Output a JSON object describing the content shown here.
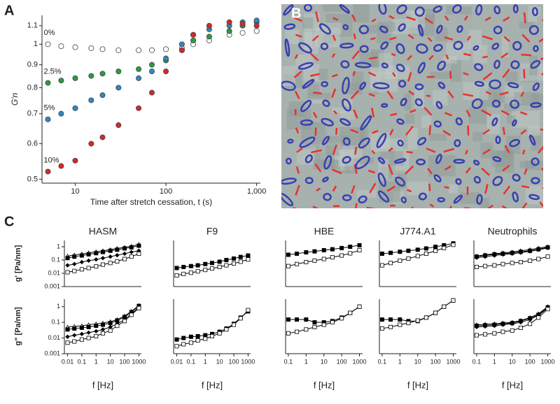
{
  "panel_labels": {
    "a": "A",
    "b": "B",
    "c": "C"
  },
  "chart_data": [
    {
      "type": "scatter",
      "xscale": "log",
      "yscale": "log",
      "xlabel": "Time after stretch cessation, t (s)",
      "ylabel": "G′n",
      "x": [
        5,
        7,
        10,
        15,
        20,
        30,
        50,
        70,
        100,
        150,
        200,
        300,
        500,
        700,
        1000
      ],
      "xlim": [
        4.3,
        1100
      ],
      "ylim": [
        0.49,
        1.16
      ],
      "xticks": [
        10,
        100,
        {
          "value": 1000,
          "label": "1,000"
        }
      ],
      "yticks": [
        0.5,
        0.6,
        0.7,
        0.8,
        0.9,
        1,
        1.1
      ],
      "series": [
        {
          "name": "0%",
          "color": "#ffffff",
          "values": [
            1.0,
            0.99,
            0.985,
            0.98,
            0.975,
            0.97,
            0.97,
            0.97,
            0.975,
            0.98,
            1.0,
            1.02,
            1.05,
            1.06,
            1.07
          ]
        },
        {
          "name": "2.5%",
          "color": "#2e9a3e",
          "values": [
            0.82,
            0.83,
            0.84,
            0.85,
            0.86,
            0.87,
            0.88,
            0.9,
            0.92,
            0.97,
            1.02,
            1.04,
            1.07,
            1.1,
            1.12
          ]
        },
        {
          "name": "5%",
          "color": "#2f86c4",
          "values": [
            0.68,
            0.7,
            0.72,
            0.75,
            0.77,
            0.8,
            0.84,
            0.87,
            0.93,
            1.0,
            1.05,
            1.08,
            1.1,
            1.12,
            1.13
          ]
        },
        {
          "name": "10%",
          "color": "#d62828",
          "values": [
            0.52,
            0.535,
            0.55,
            0.6,
            0.62,
            0.66,
            0.72,
            0.78,
            0.87,
            0.97,
            1.05,
            1.1,
            1.12,
            1.11,
            1.1
          ]
        }
      ]
    },
    {
      "type": "line",
      "title": "HASM",
      "ylabel": "g' [Pa/nm]",
      "xscale": "log",
      "yscale": "log",
      "color": "#000000",
      "x": [
        0.01,
        0.03,
        0.1,
        0.3,
        1,
        3,
        10,
        30,
        100,
        300,
        1000
      ],
      "xlim": [
        0.006,
        1500
      ],
      "ylim": [
        0.001,
        3
      ],
      "yticks": [
        0.001,
        0.01,
        0.1,
        1
      ],
      "series": [
        {
          "marker": "triangle",
          "filled": false,
          "values": [
            0.2,
            0.24,
            0.29,
            0.35,
            0.42,
            0.5,
            0.6,
            0.75,
            0.9,
            1.1,
            1.5
          ]
        },
        {
          "marker": "square",
          "filled": true,
          "values": [
            0.14,
            0.18,
            0.22,
            0.27,
            0.33,
            0.4,
            0.5,
            0.6,
            0.75,
            0.9,
            1.2
          ]
        },
        {
          "marker": "diamond",
          "filled": true,
          "values": [
            0.04,
            0.05,
            0.07,
            0.09,
            0.11,
            0.14,
            0.18,
            0.23,
            0.3,
            0.4,
            0.5
          ]
        },
        {
          "marker": "square",
          "filled": false,
          "values": [
            0.012,
            0.015,
            0.02,
            0.025,
            0.033,
            0.045,
            0.06,
            0.08,
            0.12,
            0.18,
            0.3
          ]
        }
      ]
    },
    {
      "type": "line",
      "title": "F9",
      "xscale": "log",
      "yscale": "log",
      "color": "#000000",
      "x": [
        0.01,
        0.03,
        0.1,
        0.3,
        1,
        3,
        10,
        30,
        100,
        300,
        1000
      ],
      "xlim": [
        0.006,
        1500
      ],
      "ylim": [
        0.001,
        3
      ],
      "series": [
        {
          "marker": "square",
          "filled": true,
          "values": [
            0.025,
            0.03,
            0.035,
            0.04,
            0.05,
            0.06,
            0.075,
            0.1,
            0.13,
            0.17,
            0.22
          ]
        },
        {
          "marker": "square",
          "filled": false,
          "values": [
            0.007,
            0.009,
            0.011,
            0.014,
            0.018,
            0.023,
            0.03,
            0.04,
            0.055,
            0.075,
            0.11
          ]
        }
      ]
    },
    {
      "type": "line",
      "title": "HBE",
      "xscale": "log",
      "yscale": "log",
      "color": "#000000",
      "x": [
        0.1,
        0.3,
        1,
        3,
        10,
        30,
        100,
        300,
        1000
      ],
      "xlim": [
        0.07,
        1500
      ],
      "ylim": [
        0.001,
        3
      ],
      "series": [
        {
          "marker": "square",
          "filled": true,
          "values": [
            0.25,
            0.3,
            0.38,
            0.45,
            0.55,
            0.65,
            0.8,
            1.0,
            1.3
          ]
        },
        {
          "marker": "square",
          "filled": false,
          "values": [
            0.035,
            0.05,
            0.07,
            0.09,
            0.12,
            0.16,
            0.22,
            0.32,
            0.55
          ]
        }
      ]
    },
    {
      "type": "line",
      "title": "J774.A1",
      "xscale": "log",
      "yscale": "log",
      "color": "#000000",
      "x": [
        0.1,
        0.3,
        1,
        3,
        10,
        30,
        100,
        300,
        1000
      ],
      "xlim": [
        0.07,
        1500
      ],
      "ylim": [
        0.001,
        3
      ],
      "series": [
        {
          "marker": "square",
          "filled": true,
          "values": [
            0.3,
            0.35,
            0.42,
            0.5,
            0.6,
            0.75,
            1.0,
            1.3,
            1.8
          ]
        },
        {
          "marker": "square",
          "filled": false,
          "values": [
            0.04,
            0.06,
            0.09,
            0.13,
            0.2,
            0.3,
            0.5,
            0.8,
            1.4
          ]
        }
      ]
    },
    {
      "type": "line",
      "title": "Neutrophils",
      "xscale": "log",
      "yscale": "log",
      "color": "#000000",
      "x": [
        0.1,
        0.3,
        1,
        3,
        10,
        30,
        100,
        300,
        1000
      ],
      "xlim": [
        0.07,
        1500
      ],
      "ylim": [
        0.001,
        3
      ],
      "series": [
        {
          "marker": "triangle",
          "filled": false,
          "values": [
            0.2,
            0.25,
            0.3,
            0.35,
            0.4,
            0.5,
            0.6,
            0.8,
            1.0
          ]
        },
        {
          "marker": "square",
          "filled": true,
          "values": [
            0.18,
            0.22,
            0.27,
            0.3,
            0.35,
            0.42,
            0.5,
            0.65,
            0.9
          ]
        },
        {
          "marker": "diamond",
          "filled": true,
          "values": [
            0.15,
            0.18,
            0.22,
            0.26,
            0.3,
            0.36,
            0.45,
            0.6,
            0.8
          ]
        },
        {
          "marker": "square",
          "filled": false,
          "values": [
            0.03,
            0.035,
            0.04,
            0.05,
            0.06,
            0.07,
            0.09,
            0.12,
            0.18
          ]
        }
      ]
    },
    {
      "type": "line",
      "ylabel": "g\" [Pa/nm]",
      "xlabel": "f [Hz]",
      "xscale": "log",
      "yscale": "log",
      "color": "#000000",
      "x": [
        0.01,
        0.03,
        0.1,
        0.3,
        1,
        3,
        10,
        30,
        100,
        300,
        1000
      ],
      "xlim": [
        0.006,
        1500
      ],
      "ylim": [
        0.001,
        3
      ],
      "xticks": [
        0.01,
        0.1,
        1,
        10,
        100,
        1000
      ],
      "yticks": [
        0.001,
        0.01,
        0.1,
        1
      ],
      "series": [
        {
          "marker": "triangle",
          "filled": false,
          "values": [
            0.05,
            0.055,
            0.06,
            0.07,
            0.08,
            0.09,
            0.11,
            0.15,
            0.25,
            0.5,
            1.2
          ]
        },
        {
          "marker": "square",
          "filled": true,
          "values": [
            0.035,
            0.04,
            0.045,
            0.05,
            0.06,
            0.07,
            0.09,
            0.13,
            0.22,
            0.45,
            1.1
          ]
        },
        {
          "marker": "diamond",
          "filled": true,
          "values": [
            0.012,
            0.015,
            0.018,
            0.022,
            0.027,
            0.035,
            0.05,
            0.08,
            0.15,
            0.35,
            0.9
          ]
        },
        {
          "marker": "square",
          "filled": false,
          "values": [
            0.005,
            0.006,
            0.008,
            0.01,
            0.013,
            0.02,
            0.03,
            0.06,
            0.12,
            0.3,
            0.8
          ]
        }
      ]
    },
    {
      "type": "line",
      "xlabel": "f [Hz]",
      "xscale": "log",
      "yscale": "log",
      "color": "#000000",
      "x": [
        0.01,
        0.03,
        0.1,
        0.3,
        1,
        3,
        10,
        30,
        100,
        300,
        1000
      ],
      "xlim": [
        0.006,
        1500
      ],
      "ylim": [
        0.001,
        3
      ],
      "xticks": [
        0.01,
        0.1,
        1,
        10,
        100,
        1000
      ],
      "series": [
        {
          "marker": "square",
          "filled": true,
          "values": [
            0.008,
            0.01,
            0.012,
            0.013,
            0.015,
            0.018,
            0.025,
            0.04,
            0.08,
            0.2,
            0.5
          ]
        },
        {
          "marker": "square",
          "filled": false,
          "values": [
            0.003,
            0.004,
            0.005,
            0.007,
            0.009,
            0.013,
            0.02,
            0.035,
            0.07,
            0.18,
            0.6
          ]
        }
      ]
    },
    {
      "type": "line",
      "xlabel": "f [Hz]",
      "xscale": "log",
      "yscale": "log",
      "color": "#000000",
      "x": [
        0.1,
        0.3,
        1,
        3,
        10,
        30,
        100,
        300,
        1000
      ],
      "xlim": [
        0.07,
        1500
      ],
      "ylim": [
        0.001,
        3
      ],
      "xticks": [
        0.1,
        1,
        10,
        100,
        1000
      ],
      "series": [
        {
          "marker": "square",
          "filled": true,
          "values": [
            0.15,
            0.15,
            0.15,
            0.1,
            0.1,
            0.12,
            0.2,
            0.4,
            1.0
          ]
        },
        {
          "marker": "square",
          "filled": false,
          "values": [
            0.02,
            0.025,
            0.035,
            0.05,
            0.07,
            0.1,
            0.18,
            0.4,
            1.0
          ]
        }
      ]
    },
    {
      "type": "line",
      "xlabel": "f [Hz]",
      "xscale": "log",
      "yscale": "log",
      "color": "#000000",
      "x": [
        0.1,
        0.3,
        1,
        3,
        10,
        30,
        100,
        300,
        1000
      ],
      "xlim": [
        0.07,
        1500
      ],
      "ylim": [
        0.001,
        3
      ],
      "xticks": [
        0.1,
        1,
        10,
        100,
        1000
      ],
      "series": [
        {
          "marker": "square",
          "filled": true,
          "values": [
            0.15,
            0.15,
            0.15,
            0.12,
            0.12,
            0.2,
            0.4,
            1.0,
            2.5
          ]
        },
        {
          "marker": "square",
          "filled": false,
          "values": [
            0.04,
            0.05,
            0.07,
            0.09,
            0.13,
            0.2,
            0.4,
            1.0,
            2.5
          ]
        }
      ]
    },
    {
      "type": "line",
      "xlabel": "f [Hz]",
      "xscale": "log",
      "yscale": "log",
      "color": "#000000",
      "x": [
        0.1,
        0.3,
        1,
        3,
        10,
        30,
        100,
        300,
        1000
      ],
      "xlim": [
        0.07,
        1500
      ],
      "ylim": [
        0.001,
        3
      ],
      "xticks": [
        0.1,
        1,
        10,
        100,
        1000
      ],
      "series": [
        {
          "marker": "triangle",
          "filled": false,
          "values": [
            0.07,
            0.075,
            0.08,
            0.09,
            0.1,
            0.13,
            0.2,
            0.35,
            1.0
          ]
        },
        {
          "marker": "square",
          "filled": true,
          "values": [
            0.06,
            0.065,
            0.07,
            0.08,
            0.09,
            0.12,
            0.18,
            0.3,
            0.9
          ]
        },
        {
          "marker": "diamond",
          "filled": true,
          "values": [
            0.05,
            0.055,
            0.06,
            0.07,
            0.08,
            0.1,
            0.15,
            0.28,
            0.8
          ]
        },
        {
          "marker": "square",
          "filled": false,
          "values": [
            0.015,
            0.017,
            0.02,
            0.025,
            0.03,
            0.045,
            0.08,
            0.2,
            0.7
          ]
        }
      ]
    }
  ]
}
